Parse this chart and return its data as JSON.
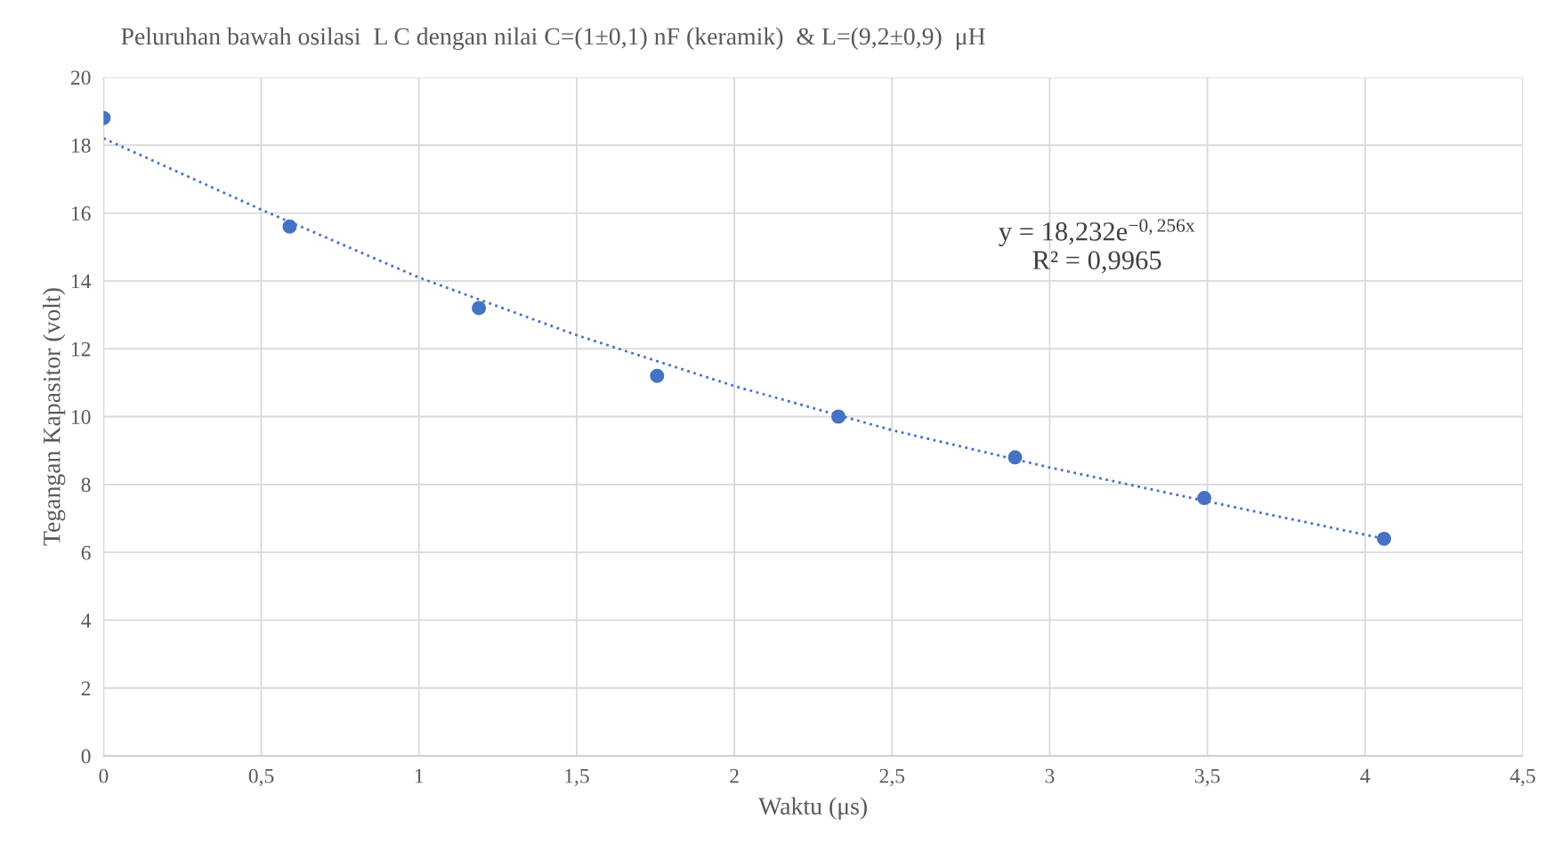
{
  "chart_data": {
    "type": "scatter",
    "title": "Peluruhan bawah osilasi  L C dengan nilai C=(1±0,1) nF (keramik)  & L=(9,2±0,9)  μH",
    "xlabel": "Waktu (μs)",
    "ylabel": "Tegangan Kapasitor (volt)",
    "x": [
      0,
      0.59,
      1.19,
      1.755,
      2.33,
      2.89,
      3.49,
      4.06
    ],
    "series": [
      {
        "color": "#4472c4",
        "marker": "circle",
        "values": [
          18.8,
          15.6,
          13.2,
          11.2,
          10.0,
          8.8,
          7.6,
          6.4
        ]
      },
      {
        "type": "line",
        "color": "#4472c4",
        "line_style": "dotted",
        "marker": "none",
        "x": [
          0,
          0.5,
          1,
          1.5,
          2,
          2.5,
          3,
          3.5,
          4.06
        ],
        "values": [
          18.2,
          16.1,
          14.1,
          12.4,
          10.9,
          9.6,
          8.5,
          7.5,
          6.4
        ]
      }
    ],
    "annotations": [
      "y = 18,232e$^{−0,256x}$\nR² = 0,9965"
    ],
    "xlim": [
      0,
      4.5
    ],
    "xticks": [
      0,
      {
        "value": 0.5,
        "label": "0,5"
      },
      1,
      {
        "value": 1.5,
        "label": "1,5"
      },
      2,
      {
        "value": 2.5,
        "label": "2,5"
      },
      3,
      {
        "value": 3.5,
        "label": "3,5"
      },
      4,
      {
        "value": 4.5,
        "label": "4,5"
      }
    ],
    "ylim": [
      0,
      20
    ],
    "yticks": [
      0,
      2,
      4,
      6,
      8,
      10,
      12,
      14,
      16,
      18,
      20
    ],
    "grid": true,
    "legend": false
  }
}
